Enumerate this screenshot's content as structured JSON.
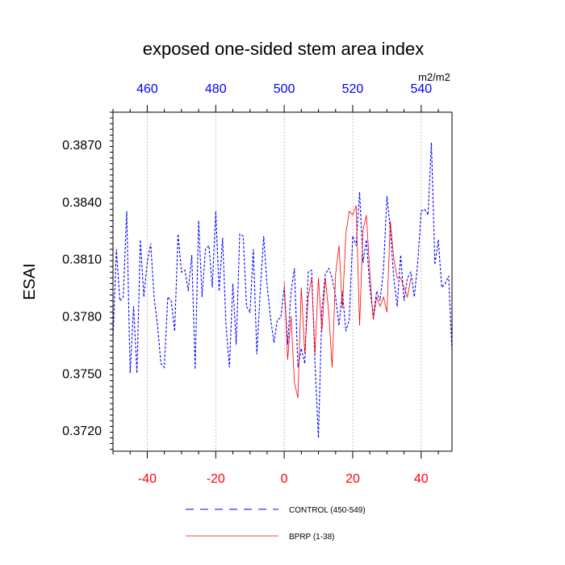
{
  "chart_data": {
    "type": "line",
    "title": "exposed one-sided stem area index",
    "ylabel": "ESAI",
    "units": "m2/m2",
    "xlim": [
      -50,
      49
    ],
    "ylim": [
      0.3709,
      0.3887
    ],
    "y_ticks": [
      0.372,
      0.375,
      0.378,
      0.381,
      0.384,
      0.387
    ],
    "y_tick_labels": [
      "0.3720",
      "0.3750",
      "0.3780",
      "0.3810",
      "0.3840",
      "0.3870"
    ],
    "x_bottom_ticks": [
      -40,
      -20,
      0,
      20,
      40
    ],
    "x_bottom_tick_labels": [
      "-40",
      "-20",
      "0",
      "20",
      "40"
    ],
    "x_top_ticks": [
      -40,
      -20,
      0,
      20,
      40
    ],
    "x_top_tick_labels": [
      "460",
      "480",
      "500",
      "520",
      "540"
    ],
    "gridlines_x": [
      -40,
      -20,
      0,
      20,
      40
    ],
    "colors": {
      "bottom_axis": "#ff0000",
      "top_axis": "#0000ff",
      "control": "#0000ff",
      "bprp": "#ff0000"
    },
    "series": [
      {
        "name": "CONTROL (450-549)",
        "style": "dashed",
        "x": [
          -50,
          -49,
          -48,
          -47,
          -46,
          -45,
          -44,
          -43,
          -42,
          -41,
          -40,
          -39,
          -38,
          -37,
          -36,
          -35,
          -34,
          -33,
          -32,
          -31,
          -30,
          -29,
          -28,
          -27,
          -26,
          -25,
          -24,
          -23,
          -22,
          -21,
          -20,
          -19,
          -18,
          -17,
          -16,
          -15,
          -14,
          -13,
          -12,
          -11,
          -10,
          -9,
          -8,
          -7,
          -6,
          -5,
          -4,
          -3,
          -2,
          -1,
          0,
          1,
          2,
          3,
          4,
          5,
          6,
          7,
          8,
          9,
          10,
          11,
          12,
          13,
          14,
          15,
          16,
          17,
          18,
          19,
          20,
          21,
          22,
          23,
          24,
          25,
          26,
          27,
          28,
          29,
          30,
          31,
          32,
          33,
          34,
          35,
          36,
          37,
          38,
          39,
          40,
          41,
          42,
          43,
          44,
          45,
          46,
          47,
          48,
          49
        ],
        "values": [
          0.3768,
          0.3815,
          0.3788,
          0.379,
          0.3835,
          0.375,
          0.3785,
          0.375,
          0.382,
          0.379,
          0.3808,
          0.3818,
          0.379,
          0.3775,
          0.3755,
          0.3753,
          0.379,
          0.3788,
          0.3772,
          0.3823,
          0.3803,
          0.3804,
          0.3793,
          0.3812,
          0.3752,
          0.383,
          0.379,
          0.3815,
          0.3817,
          0.3795,
          0.3835,
          0.3793,
          0.3821,
          0.3775,
          0.3753,
          0.3797,
          0.3765,
          0.3823,
          0.3822,
          0.3785,
          0.3782,
          0.3815,
          0.376,
          0.3793,
          0.3822,
          0.3796,
          0.3779,
          0.3766,
          0.3778,
          0.3779,
          0.3795,
          0.3765,
          0.3793,
          0.3805,
          0.3753,
          0.3763,
          0.3755,
          0.3803,
          0.3804,
          0.3755,
          0.3716,
          0.3783,
          0.3802,
          0.3805,
          0.38,
          0.379,
          0.3775,
          0.3793,
          0.3772,
          0.3778,
          0.3822,
          0.3817,
          0.3845,
          0.3808,
          0.382,
          0.3795,
          0.378,
          0.3793,
          0.3788,
          0.3805,
          0.3843,
          0.3825,
          0.38,
          0.3785,
          0.3812,
          0.3788,
          0.38,
          0.3803,
          0.379,
          0.3808,
          0.3835,
          0.3836,
          0.3833,
          0.3871,
          0.3807,
          0.382,
          0.3795,
          0.3797,
          0.3801,
          0.3762
        ]
      },
      {
        "name": "BPRP (1-38)",
        "style": "solid",
        "x": [
          0,
          1,
          2,
          3,
          4,
          5,
          6,
          7,
          8,
          9,
          10,
          11,
          12,
          13,
          14,
          15,
          16,
          17,
          18,
          19,
          20,
          21,
          22,
          23,
          24,
          25,
          26,
          27,
          28,
          29,
          30,
          31,
          32,
          33,
          34,
          35,
          36,
          37
        ],
        "values": [
          0.3798,
          0.3757,
          0.378,
          0.3745,
          0.3737,
          0.3795,
          0.376,
          0.379,
          0.38,
          0.376,
          0.38,
          0.3772,
          0.38,
          0.3782,
          0.3753,
          0.3802,
          0.3817,
          0.3784,
          0.3823,
          0.3835,
          0.3833,
          0.3838,
          0.3775,
          0.3825,
          0.3833,
          0.3803,
          0.3778,
          0.379,
          0.3785,
          0.379,
          0.3782,
          0.383,
          0.381,
          0.38,
          0.38,
          0.3795,
          0.379,
          0.38
        ]
      }
    ]
  }
}
